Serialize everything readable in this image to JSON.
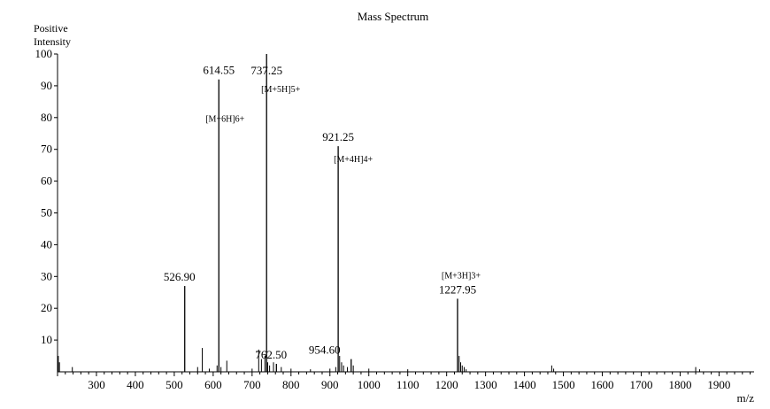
{
  "chart_data": {
    "type": "bar",
    "title": "Mass Spectrum",
    "ylabel_lines": [
      "Positive",
      "Intensity"
    ],
    "xlabel": "m/z",
    "xlim": [
      200,
      1990
    ],
    "ylim": [
      0,
      100
    ],
    "x_ticks": [
      300,
      400,
      500,
      600,
      700,
      800,
      900,
      1000,
      1100,
      1200,
      1300,
      1400,
      1500,
      1600,
      1700,
      1800,
      1900
    ],
    "y_ticks": [
      10,
      20,
      30,
      40,
      50,
      60,
      70,
      80,
      90,
      100
    ],
    "grid": false,
    "peaks": [
      {
        "x": 526.9,
        "y": 27,
        "label": "526.90",
        "annotation": ""
      },
      {
        "x": 614.55,
        "y": 92,
        "label": "614.55",
        "annotation": "[M+6H]6+"
      },
      {
        "x": 737.25,
        "y": 100,
        "label": "737.25",
        "annotation": "[M+5H]5+"
      },
      {
        "x": 762.5,
        "y": 2.5,
        "label": "762.50",
        "annotation": ""
      },
      {
        "x": 921.25,
        "y": 71,
        "label": "921.25",
        "annotation": "[M+4H]4+"
      },
      {
        "x": 954.6,
        "y": 4,
        "label": "954.60",
        "annotation": ""
      },
      {
        "x": 1227.95,
        "y": 23,
        "label": "1227.95",
        "annotation": "[M+3H]3+"
      }
    ],
    "minor_peaks": [
      {
        "x": 202,
        "y": 5
      },
      {
        "x": 205,
        "y": 3
      },
      {
        "x": 238,
        "y": 1.5
      },
      {
        "x": 560,
        "y": 1.5
      },
      {
        "x": 572,
        "y": 7.5
      },
      {
        "x": 590,
        "y": 1
      },
      {
        "x": 610,
        "y": 2
      },
      {
        "x": 620,
        "y": 1.5
      },
      {
        "x": 635,
        "y": 3.5
      },
      {
        "x": 700,
        "y": 1
      },
      {
        "x": 717,
        "y": 7
      },
      {
        "x": 724,
        "y": 4
      },
      {
        "x": 733,
        "y": 5
      },
      {
        "x": 740,
        "y": 3
      },
      {
        "x": 745,
        "y": 2
      },
      {
        "x": 755,
        "y": 3
      },
      {
        "x": 775,
        "y": 1.5
      },
      {
        "x": 800,
        "y": 1
      },
      {
        "x": 850,
        "y": 0.8
      },
      {
        "x": 900,
        "y": 1
      },
      {
        "x": 915,
        "y": 1.5
      },
      {
        "x": 925,
        "y": 5
      },
      {
        "x": 930,
        "y": 3
      },
      {
        "x": 935,
        "y": 2
      },
      {
        "x": 945,
        "y": 1.5
      },
      {
        "x": 960,
        "y": 2
      },
      {
        "x": 1000,
        "y": 1
      },
      {
        "x": 1100,
        "y": 0.8
      },
      {
        "x": 1232,
        "y": 5
      },
      {
        "x": 1236,
        "y": 3
      },
      {
        "x": 1240,
        "y": 2
      },
      {
        "x": 1245,
        "y": 1.5
      },
      {
        "x": 1250,
        "y": 0.8
      },
      {
        "x": 1470,
        "y": 2
      },
      {
        "x": 1475,
        "y": 1
      },
      {
        "x": 1840,
        "y": 1.5
      },
      {
        "x": 1850,
        "y": 0.8
      }
    ]
  }
}
